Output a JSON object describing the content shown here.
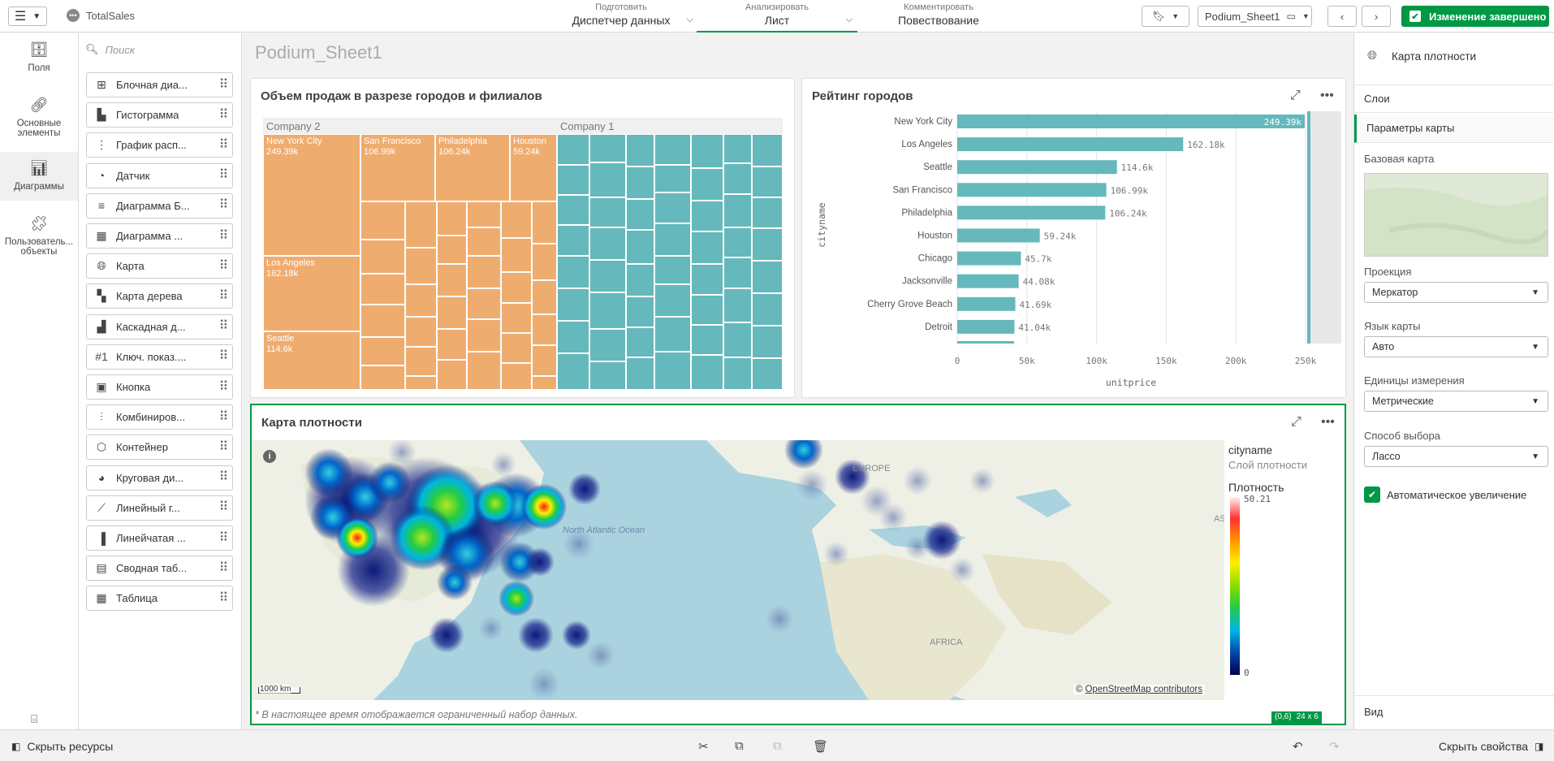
{
  "app": {
    "name": "TotalSales"
  },
  "steps": [
    {
      "sub": "Подготовить",
      "main": "Диспетчер данных"
    },
    {
      "sub": "Анализировать",
      "main": "Лист"
    },
    {
      "sub": "Комментировать",
      "main": "Повествование"
    }
  ],
  "toolbar": {
    "sheet_selector": "Podium_Sheet1",
    "done_button": "Изменение завершено"
  },
  "leftnav": [
    {
      "label": "Поля",
      "icon": "database-icon"
    },
    {
      "label": "Основные элементы",
      "icon": "link-icon"
    },
    {
      "label": "Диаграммы",
      "icon": "chart-icon"
    },
    {
      "label": "Пользователь... объекты",
      "icon": "puzzle-icon"
    }
  ],
  "assets": {
    "search_placeholder": "Поиск",
    "items": [
      {
        "label": "Блочная диа...",
        "icon": "boxplot-icon"
      },
      {
        "label": "Гистограмма",
        "icon": "histogram-icon"
      },
      {
        "label": "График расп...",
        "icon": "distribution-icon"
      },
      {
        "label": "Датчик",
        "icon": "gauge-icon"
      },
      {
        "label": "Диаграмма Б...",
        "icon": "bullet-icon"
      },
      {
        "label": "Диаграмма ...",
        "icon": "grid-icon"
      },
      {
        "label": "Карта",
        "icon": "globe-icon"
      },
      {
        "label": "Карта дерева",
        "icon": "treemap-icon"
      },
      {
        "label": "Каскадная д...",
        "icon": "waterfall-icon"
      },
      {
        "label": "Ключ. показ....",
        "icon": "kpi-icon"
      },
      {
        "label": "Кнопка",
        "icon": "button-icon"
      },
      {
        "label": "Комбиниров...",
        "icon": "combo-icon"
      },
      {
        "label": "Контейнер",
        "icon": "container-icon"
      },
      {
        "label": "Круговая ди...",
        "icon": "pie-icon"
      },
      {
        "label": "Линейный г...",
        "icon": "line-icon"
      },
      {
        "label": "Линейчатая ...",
        "icon": "bar-icon"
      },
      {
        "label": "Сводная таб...",
        "icon": "pivot-icon"
      },
      {
        "label": "Таблица",
        "icon": "table-icon"
      }
    ]
  },
  "sheet": {
    "title": "Podium_Sheet1"
  },
  "treemap": {
    "title": "Объем продаж в разрезе городов и филиалов",
    "groups": [
      {
        "name": "Company 2",
        "color": "#efac6f",
        "leaves": [
          {
            "label": "New York City",
            "value": "249.39k"
          },
          {
            "label": "San Francisco",
            "value": "106.99k"
          },
          {
            "label": "Philadelphia",
            "value": "106.24k"
          },
          {
            "label": "Houston",
            "value": "59.24k"
          },
          {
            "label": "Los Angeles",
            "value": "162.18k"
          },
          {
            "label": "Seattle",
            "value": "114.6k"
          }
        ]
      },
      {
        "name": "Company 1",
        "color": "#65b8bc",
        "leaves": []
      }
    ]
  },
  "chart_data": {
    "type": "bar",
    "title": "Рейтинг городов",
    "categories": [
      "New York City",
      "Los Angeles",
      "Seattle",
      "San Francisco",
      "Philadelphia",
      "Houston",
      "Chicago",
      "Jacksonville",
      "Cherry Grove Beach",
      "Detroit"
    ],
    "values": [
      249390,
      162180,
      114600,
      106990,
      106240,
      59240,
      45700,
      44080,
      41690,
      41040
    ],
    "value_labels": [
      "249.39k",
      "162.18k",
      "114.6k",
      "106.99k",
      "106.24k",
      "59.24k",
      "45.7k",
      "44.08k",
      "41.69k",
      "41.04k"
    ],
    "xlabel": "unitprice",
    "ylabel": "cityname",
    "xticks": [
      "0",
      "50k",
      "100k",
      "150k",
      "200k",
      "250k"
    ],
    "xlim": [
      0,
      250000
    ],
    "orientation": "horizontal",
    "bar_color": "#65b8bc",
    "grid": true
  },
  "heatmap": {
    "title": "Карта плотности",
    "ocean_label": "North Atlantic Ocean",
    "europe_label": "EUROPE",
    "africa_label": "AFRICA",
    "asia_label": "AS",
    "scale": "1000 km",
    "attribution_prefix": "©",
    "attribution_link": "OpenStreetMap contributors",
    "footnote": "* В настоящее время отображается ограниченный набор данных.",
    "legend": {
      "field": "cityname",
      "layer": "Слой плотности",
      "title": "Плотность",
      "max": "50.21",
      "min": "0"
    },
    "position_badge": "(0,6)",
    "size_badge": "24 x 6"
  },
  "properties": {
    "title": "Карта плотности",
    "layers": "Слои",
    "map_settings": "Параметры карты",
    "base_map": "Базовая карта",
    "projection_label": "Проекция",
    "projection_value": "Меркатор",
    "language_label": "Язык карты",
    "language_value": "Авто",
    "units_label": "Единицы измерения",
    "units_value": "Метрические",
    "selection_label": "Способ выбора",
    "selection_value": "Лассо",
    "autozoom": "Автоматическое увеличение",
    "view": "Вид"
  },
  "bottom": {
    "hide_assets": "Скрыть ресурсы",
    "hide_properties": "Скрыть свойства"
  },
  "colors": {
    "accent": "#009845",
    "company1": "#65b8bc",
    "company2": "#efac6f"
  }
}
